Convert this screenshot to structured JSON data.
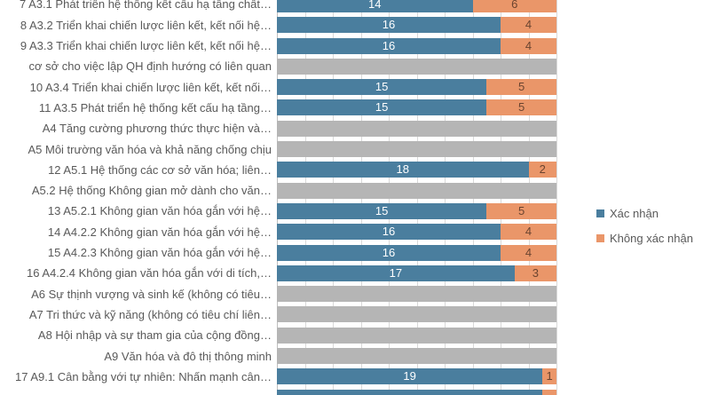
{
  "chart_data": {
    "type": "bar",
    "orientation": "horizontal",
    "stacked": true,
    "title": "",
    "xlabel": "",
    "ylabel": "",
    "xlim": [
      0,
      20
    ],
    "gridline_interval": 2,
    "grid": true,
    "legend_position": "right",
    "legend": [
      {
        "name": "confirmed",
        "label": "Xác nhận",
        "color": "#4a7e9e"
      },
      {
        "name": "not_confirmed",
        "label": "Không xác nhận",
        "color": "#ea9669"
      }
    ],
    "colors": {
      "confirmed": "#4a7e9e",
      "not_confirmed": "#ea9669",
      "no_data": "#b5b5b5",
      "grid": "#d9d9d9",
      "axis": "#bfbfbf",
      "category_text": "#595959",
      "value_text_on_blue": "#ffffff",
      "value_text_on_orange": "#6b4430"
    },
    "rows": [
      {
        "label": "7 A3.1 Phát triển hệ thống kết cấu hạ tầng chất…",
        "confirmed": 14,
        "not_confirmed": 6
      },
      {
        "label": "8 A3.2 Triển khai chiến lược liên kết, kết nối hệ…",
        "confirmed": 16,
        "not_confirmed": 4
      },
      {
        "label": "9 A3.3 Triển khai chiến lược liên kết, kết nối hệ…",
        "confirmed": 16,
        "not_confirmed": 4
      },
      {
        "label": "cơ sở cho việc lập QH định hướng có liên quan",
        "no_data": true
      },
      {
        "label": "10 A3.4 Triển khai chiến lược liên kết, kết nối…",
        "confirmed": 15,
        "not_confirmed": 5
      },
      {
        "label": "11 A3.5 Phát triển hệ thống kết cấu hạ tầng…",
        "confirmed": 15,
        "not_confirmed": 5
      },
      {
        "label": "A4 Tăng cường phương thức thực hiện và…",
        "no_data": true
      },
      {
        "label": "A5 Môi trường văn hóa và khả năng chống chịu",
        "no_data": true
      },
      {
        "label": "12 A5.1 Hệ thống các cơ sở văn hóa; liên…",
        "confirmed": 18,
        "not_confirmed": 2
      },
      {
        "label": "A5.2 Hệ thống Không gian mở dành cho văn…",
        "no_data": true
      },
      {
        "label": "13 A5.2.1 Không gian văn hóa gắn với hệ…",
        "confirmed": 15,
        "not_confirmed": 5
      },
      {
        "label": "14 A4.2.2 Không gian văn hóa gắn với hệ…",
        "confirmed": 16,
        "not_confirmed": 4
      },
      {
        "label": "15 A4.2.3 Không gian văn hóa gắn với hệ…",
        "confirmed": 16,
        "not_confirmed": 4
      },
      {
        "label": "16 A4.2.4 Không gian văn hóa gắn với di tích,…",
        "confirmed": 17,
        "not_confirmed": 3
      },
      {
        "label": "A6 Sự thịnh vượng và sinh kế (không có tiêu…",
        "no_data": true
      },
      {
        "label": "A7 Tri thức và kỹ năng (không có tiêu chí liên…",
        "no_data": true
      },
      {
        "label": "A8 Hội nhập và sự tham gia của cộng đồng…",
        "no_data": true
      },
      {
        "label": "A9 Văn hóa và đô thị thông minh",
        "no_data": true
      },
      {
        "label": "17 A9.1 Cân bằng với tự nhiên: Nhấn mạnh cân…",
        "confirmed": 19,
        "not_confirmed": 1
      },
      {
        "label": "",
        "confirmed": 19,
        "not_confirmed": 1,
        "cut": true
      }
    ]
  }
}
